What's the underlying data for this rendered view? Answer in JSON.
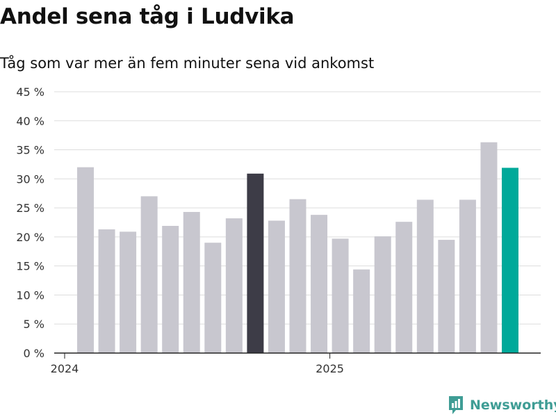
{
  "header": {
    "title": "Andel sena tåg i Ludvika",
    "subtitle": "Tåg som var mer än fem minuter sena vid ankomst"
  },
  "brand": {
    "name": "Newsworthy",
    "icon": "newsworthy-logo-icon",
    "color": "#3f9d95"
  },
  "colors": {
    "bar_default": "#c8c7cf",
    "bar_highlight_dark": "#3d3c47",
    "bar_highlight_accent": "#00a99a",
    "gridline": "#dddddd",
    "axis": "#222222",
    "tick_text": "#333333"
  },
  "chart_data": {
    "type": "bar",
    "title": "Andel sena tåg i Ludvika",
    "subtitle": "Tåg som var mer än fem minuter sena vid ankomst",
    "x_axis_labels": [
      {
        "label": "2024",
        "at_index": 0
      },
      {
        "label": "2025",
        "at_index": 12
      }
    ],
    "values": [
      32.0,
      21.3,
      20.9,
      27.0,
      21.9,
      24.3,
      19.0,
      23.2,
      30.9,
      22.8,
      26.5,
      23.8,
      19.7,
      14.4,
      20.1,
      22.6,
      26.4,
      19.5,
      26.4,
      36.3,
      31.9
    ],
    "highlight": [
      {
        "index": 8,
        "color_key": "bar_highlight_dark"
      },
      {
        "index": 20,
        "color_key": "bar_highlight_accent"
      }
    ],
    "y_ticks": [
      "0 %",
      "5 %",
      "10 %",
      "15 %",
      "20 %",
      "25 %",
      "30 %",
      "35 %",
      "40 %",
      "45 %"
    ],
    "ylim": [
      0,
      45
    ],
    "y_step": 5,
    "grid": true,
    "legend": "none"
  }
}
